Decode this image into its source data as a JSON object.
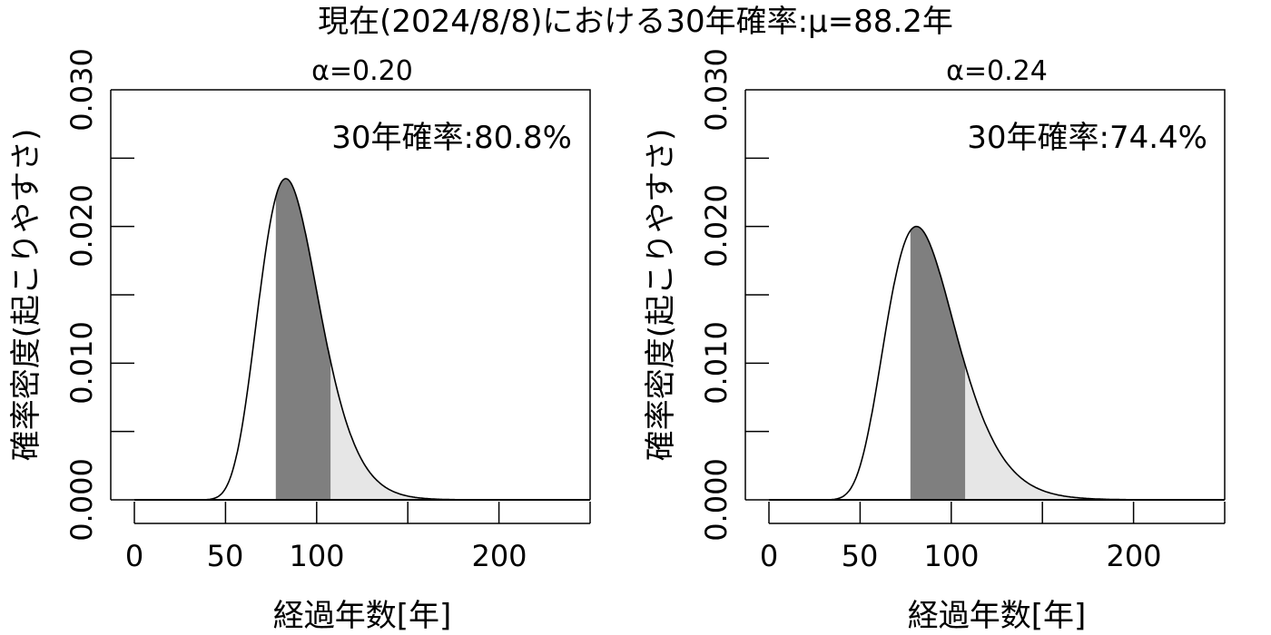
{
  "title": "現在(2024/8/8)における30年確率:μ=88.2年",
  "chart_data": [
    {
      "type": "area",
      "subtitle": "α=0.20",
      "annotation": "30年確率:80.8%",
      "xlabel": "経過年数[年]",
      "ylabel": "確率密度(起こりやすさ)",
      "xlim": [
        0,
        250
      ],
      "ylim": [
        0,
        0.03
      ],
      "x_ticks": [
        "0",
        "50",
        "100",
        "200"
      ],
      "y_ticks": [
        "0.000",
        "0.010",
        "0.020",
        "0.030"
      ],
      "mu": 88.2,
      "alpha": 0.2,
      "peak": {
        "x": 84,
        "y": 0.0235
      },
      "shaded_dark": [
        77.6,
        107.6
      ],
      "shaded_light_from": 107.6,
      "colors": {
        "dark": "#7f7f7f",
        "light": "#e6e6e6",
        "line": "#000000"
      }
    },
    {
      "type": "area",
      "subtitle": "α=0.24",
      "annotation": "30年確率:74.4%",
      "xlabel": "経過年数[年]",
      "ylabel": "確率密度(起こりやすさ)",
      "xlim": [
        0,
        250
      ],
      "ylim": [
        0,
        0.03
      ],
      "x_ticks": [
        "0",
        "50",
        "100",
        "200"
      ],
      "y_ticks": [
        "0.000",
        "0.010",
        "0.020",
        "0.030"
      ],
      "mu": 88.2,
      "alpha": 0.24,
      "peak": {
        "x": 81.5,
        "y": 0.02
      },
      "shaded_dark": [
        77.6,
        107.6
      ],
      "shaded_light_from": 107.6,
      "colors": {
        "dark": "#7f7f7f",
        "light": "#e6e6e6",
        "line": "#000000"
      }
    }
  ]
}
